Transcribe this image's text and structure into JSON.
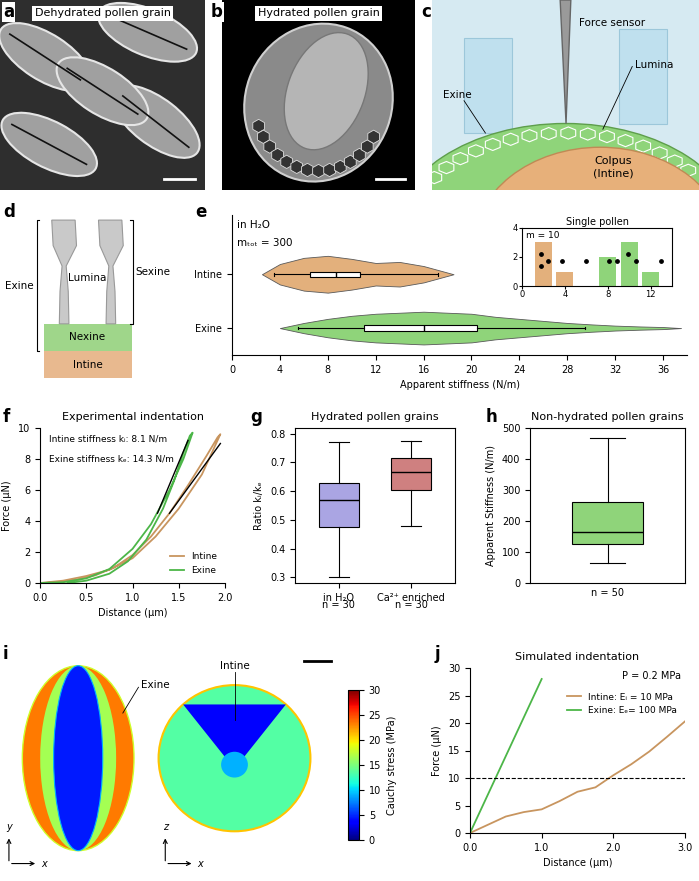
{
  "images": [
    {
      "label": "a",
      "title": "Dehydrated pollen grain"
    },
    {
      "label": "b",
      "title": "Hydrated pollen grain"
    },
    {
      "label": "c",
      "annotations": [
        "Force sensor",
        "Lumina",
        "Exine",
        "Colpus\n(Intine)"
      ]
    }
  ],
  "diagram": {
    "label": "d",
    "texts": {
      "exine": "Exine",
      "sexine": "Sexine",
      "lumina": "Lumina",
      "nexine": "Nexine",
      "intine": "Intine"
    }
  },
  "chart_data": [
    {
      "type": "violin",
      "label": "e",
      "orientation": "horizontal",
      "annotations": [
        "in H₂O",
        "mₜₒₜ = 300"
      ],
      "xlabel": "Apparent stiffness (N/m)",
      "categories": [
        "Exine",
        "Intine"
      ],
      "xlim": [
        0,
        38
      ],
      "xticks": [
        0,
        4,
        8,
        12,
        16,
        20,
        24,
        28,
        32,
        36
      ],
      "series": [
        {
          "color": "#8fd47a",
          "density_x": [
            4,
            6,
            8,
            10,
            12,
            14,
            16,
            18,
            20,
            22,
            24,
            26,
            28,
            30,
            32,
            34,
            36,
            37.5
          ],
          "density": [
            0,
            0.25,
            0.45,
            0.6,
            0.7,
            0.75,
            0.8,
            0.75,
            0.7,
            0.55,
            0.45,
            0.35,
            0.25,
            0.18,
            0.12,
            0.08,
            0.05,
            0
          ],
          "box": {
            "whislo": 5.5,
            "q1": 11,
            "med": 16,
            "q3": 20.5,
            "whishi": 29.5
          }
        },
        {
          "color": "#e3b07c",
          "density_x": [
            2.5,
            4,
            6,
            8,
            10,
            12,
            14,
            16,
            18.5
          ],
          "density": [
            0,
            0.5,
            0.8,
            0.9,
            0.75,
            0.55,
            0.6,
            0.4,
            0
          ],
          "box": {
            "whislo": 3.5,
            "q1": 6.5,
            "med": 8.7,
            "q3": 10.7,
            "whishi": 17.2
          }
        }
      ]
    },
    {
      "type": "bar",
      "title": "Single pollen",
      "annotation": "m = 10",
      "xlim": [
        0,
        14
      ],
      "xticks": [
        0,
        4,
        8,
        12
      ],
      "ylim": [
        0,
        4
      ],
      "yticks": [
        0,
        2,
        4
      ],
      "series": [
        {
          "color": "#e3b07c",
          "x": [
            2,
            4
          ],
          "values": [
            3,
            1
          ]
        },
        {
          "color": "#8fd47a",
          "x": [
            8,
            10,
            12
          ],
          "values": [
            2,
            3,
            1
          ]
        }
      ],
      "points": {
        "x": [
          1.8,
          2.4,
          1.8,
          3.7,
          6.0,
          8.1,
          8.9,
          9.9,
          10.6,
          13.0
        ],
        "y": [
          2.2,
          1.7,
          1.4,
          1.7,
          1.7,
          1.7,
          1.7,
          2.2,
          1.7,
          1.7
        ]
      }
    },
    {
      "type": "line",
      "label": "f",
      "title": "Experimental indentation",
      "xlabel": "Distance (µm)",
      "ylabel": "Force (µN)",
      "xlim": [
        0,
        2
      ],
      "xticks": [
        {
          "value": 0,
          "label": "0.0"
        },
        0.5,
        {
          "value": 1,
          "label": "1.0"
        },
        1.5,
        {
          "value": 2,
          "label": "2.0"
        }
      ],
      "ylim": [
        0,
        10
      ],
      "yticks": [
        0,
        2,
        4,
        6,
        8,
        10
      ],
      "legend": "lower right",
      "series": [
        {
          "name": "Intine",
          "color": "#c8955f",
          "x": [
            0,
            0.25,
            0.5,
            0.75,
            1.0,
            1.25,
            1.5,
            1.75,
            1.95,
            1.92,
            1.8,
            1.6,
            1.4,
            1.2,
            1.0,
            0.8,
            0.6,
            0.4,
            0.2,
            0.05
          ],
          "values": [
            0,
            0.15,
            0.45,
            0.85,
            1.6,
            3.0,
            4.8,
            7.0,
            9.6,
            9.4,
            8.2,
            6.3,
            4.5,
            3.0,
            1.8,
            1.0,
            0.5,
            0.2,
            0.05,
            0
          ]
        },
        {
          "name": "Exine",
          "color": "#4cb648",
          "x": [
            0,
            0.25,
            0.5,
            0.75,
            1.0,
            1.2,
            1.4,
            1.55,
            1.65,
            1.62,
            1.55,
            1.45,
            1.33,
            1.15,
            0.95,
            0.75,
            0.5,
            0.3
          ],
          "values": [
            0,
            0.05,
            0.3,
            0.9,
            2.2,
            3.8,
            6.0,
            8.0,
            9.7,
            9.5,
            8.4,
            6.6,
            4.8,
            2.8,
            1.4,
            0.6,
            0.15,
            0
          ]
        }
      ],
      "fits": [
        {
          "text": "Intine stiffness kᵢ: 8.1 N/m",
          "x": [
            1.4,
            1.95
          ],
          "y": [
            4.5,
            9.0
          ]
        },
        {
          "text": "Exine stiffness kₑ: 14.3 N/m",
          "x": [
            1.27,
            1.6
          ],
          "y": [
            4.5,
            9.2
          ]
        }
      ]
    },
    {
      "type": "box",
      "label": "g",
      "title": "Hydrated pollen grains",
      "ylabel": "Ratio kᵢ/kₑ",
      "categories": [
        "in H₂O",
        "Ca²⁺ enriched"
      ],
      "n_labels": [
        "n = 30",
        "n = 30"
      ],
      "ylim": [
        0.28,
        0.82
      ],
      "yticks": [
        0.3,
        0.4,
        0.5,
        0.6,
        0.7,
        0.8
      ],
      "colors": [
        "#aaa5e3",
        "#cf8080"
      ],
      "boxes": [
        {
          "whislo": 0.3,
          "q1": 0.475,
          "med": 0.57,
          "q3": 0.63,
          "whishi": 0.77
        },
        {
          "whislo": 0.48,
          "q1": 0.605,
          "med": 0.665,
          "q3": 0.715,
          "whishi": 0.775
        }
      ]
    },
    {
      "type": "box",
      "label": "h",
      "title": "Non-hydrated pollen grains",
      "ylabel": "Apparent Stiffness (N/m)",
      "categories": [
        null
      ],
      "n_labels": [
        "n = 50"
      ],
      "ylim": [
        0,
        500
      ],
      "yticks": [
        0,
        100,
        200,
        300,
        400,
        500
      ],
      "colors": [
        "#8fd47a"
      ],
      "boxes": [
        {
          "whislo": 65,
          "q1": 125,
          "med": 165,
          "q3": 262,
          "whishi": 468
        }
      ]
    },
    {
      "type": "line",
      "label": "j",
      "title": "Simulated indentation",
      "annotation": "P = 0.2 MPa",
      "xlabel": "Distance (µm)",
      "ylabel": "Force (µN)",
      "xlim": [
        0,
        3
      ],
      "xticks": [
        {
          "value": 0,
          "label": "0.0"
        },
        {
          "value": 1,
          "label": "1.0"
        },
        {
          "value": 2,
          "label": "2.0"
        },
        {
          "value": 3,
          "label": "3.0"
        }
      ],
      "ylim": [
        0,
        30
      ],
      "yticks": [
        0,
        5,
        10,
        15,
        20,
        25,
        30
      ],
      "legend": "upper right",
      "reference_line": 10,
      "series": [
        {
          "name": "Intine: Eᵢ = 10 MPa",
          "color": "#c8955f",
          "x": [
            0,
            0.25,
            0.5,
            0.75,
            1.0,
            1.25,
            1.5,
            1.75,
            2.0,
            2.25,
            2.5,
            2.75,
            3.0
          ],
          "values": [
            0,
            1.5,
            3.0,
            3.8,
            4.3,
            5.8,
            7.5,
            8.3,
            10.5,
            12.5,
            14.8,
            17.5,
            20.3
          ]
        },
        {
          "name": "Exine: Eₑ= 100 MPa",
          "color": "#4cb648",
          "x": [
            0,
            1.0
          ],
          "values": [
            0,
            28
          ]
        }
      ]
    }
  ],
  "simulation": {
    "label": "i",
    "annotations": [
      "Exine",
      "Intine"
    ],
    "coordinate_axes": [
      [
        "y",
        "x"
      ],
      [
        "z",
        "x"
      ]
    ],
    "colorbar": {
      "title": "Cauchy stress (MPa)",
      "range": [
        0,
        30
      ],
      "ticks": [
        0,
        5,
        10,
        15,
        20,
        25,
        30
      ]
    }
  }
}
